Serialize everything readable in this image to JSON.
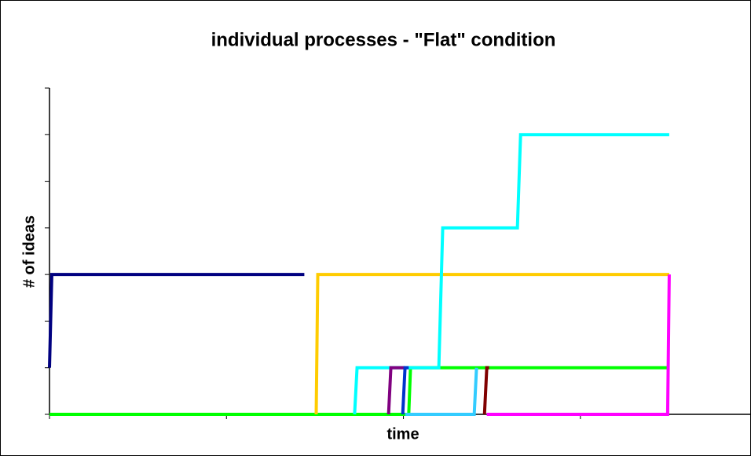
{
  "chart_data": {
    "type": "line",
    "title": "individual processes - \"Flat\" condition",
    "xlabel": "time",
    "ylabel": "# of ideas",
    "xlim": [
      0,
      3.964
    ],
    "xticks": [
      0,
      1,
      2,
      3
    ],
    "ylim": [
      0,
      7
    ],
    "yticks": [
      0,
      1,
      2,
      3,
      4,
      5,
      6,
      7
    ],
    "series": [
      {
        "color": "#00ff00",
        "x": [
          0,
          2.03,
          2.04,
          3.502
        ],
        "values": [
          0,
          0,
          1,
          1
        ]
      },
      {
        "color": "#000080",
        "x": [
          0,
          0.013,
          1.44
        ],
        "values": [
          1,
          3,
          3
        ]
      },
      {
        "color": "#ffcc00",
        "x": [
          1.507,
          1.516,
          3.502
        ],
        "values": [
          0,
          3,
          3
        ]
      },
      {
        "color": "#00ffff",
        "x": [
          1.724,
          1.738,
          2.2,
          2.222,
          2.644,
          2.662,
          3.502
        ],
        "values": [
          0,
          1,
          1,
          4,
          4,
          6,
          6
        ]
      },
      {
        "color": "#800080",
        "x": [
          1.916,
          1.929,
          2.009
        ],
        "values": [
          0,
          1,
          1
        ]
      },
      {
        "color": "#0033cc",
        "x": [
          1.996,
          2.009,
          2.03
        ],
        "values": [
          0,
          1,
          1
        ]
      },
      {
        "color": "#33ccff",
        "x": [
          2.01,
          2.4,
          2.413
        ],
        "values": [
          0,
          0,
          1
        ]
      },
      {
        "color": "#800000",
        "x": [
          2.458,
          2.471,
          2.484
        ],
        "values": [
          0,
          1,
          1
        ]
      },
      {
        "color": "#ff00ff",
        "x": [
          2.471,
          3.493,
          3.502
        ],
        "values": [
          0,
          0,
          3
        ]
      }
    ]
  }
}
